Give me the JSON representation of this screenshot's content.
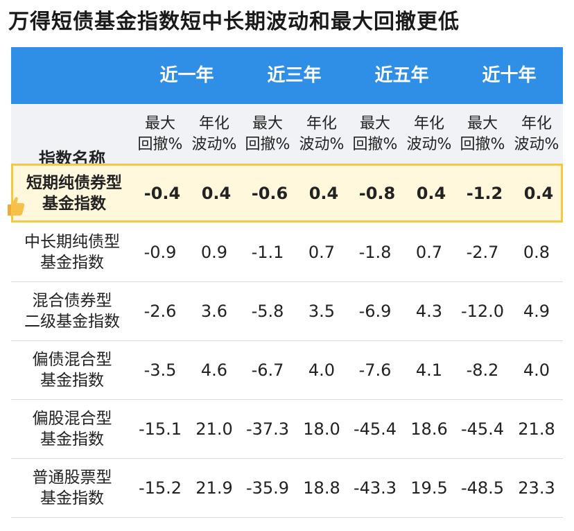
{
  "title": "万得短债基金指数短中长期波动和最大回撤更低",
  "table": {
    "name_header": "指数名称",
    "periods": [
      "近一年",
      "近三年",
      "近五年",
      "近十年"
    ],
    "sub_headers": [
      {
        "line1": "最大",
        "line2": "回撤%"
      },
      {
        "line1": "年化",
        "line2": "波动%"
      },
      {
        "line1": "最大",
        "line2": "回撤%"
      },
      {
        "line1": "年化",
        "line2": "波动%"
      },
      {
        "line1": "最大",
        "line2": "回撤%"
      },
      {
        "line1": "年化",
        "line2": "波动%"
      },
      {
        "line1": "最大",
        "line2": "回撤%"
      },
      {
        "line1": "年化",
        "line2": "波动%"
      }
    ],
    "rows": [
      {
        "name1": "短期纯债券型",
        "name2": "基金指数",
        "values": [
          "-0.4",
          "0.4",
          "-0.6",
          "0.4",
          "-0.8",
          "0.4",
          "-1.2",
          "0.4"
        ]
      },
      {
        "name1": "中长期纯债型",
        "name2": "基金指数",
        "values": [
          "-0.9",
          "0.9",
          "-1.1",
          "0.7",
          "-1.8",
          "0.7",
          "-2.7",
          "0.8"
        ]
      },
      {
        "name1": "混合债券型",
        "name2": "二级基金指数",
        "values": [
          "-2.6",
          "3.6",
          "-5.8",
          "3.5",
          "-6.9",
          "4.3",
          "-12.0",
          "4.9"
        ]
      },
      {
        "name1": "偏债混合型",
        "name2": "基金指数",
        "values": [
          "-3.5",
          "4.6",
          "-6.7",
          "4.0",
          "-7.6",
          "4.1",
          "-8.2",
          "4.0"
        ]
      },
      {
        "name1": "偏股混合型",
        "name2": "基金指数",
        "values": [
          "-15.1",
          "21.0",
          "-37.3",
          "18.0",
          "-45.4",
          "18.6",
          "-45.4",
          "21.8"
        ]
      },
      {
        "name1": "普通股票型",
        "name2": "基金指数",
        "values": [
          "-15.2",
          "21.9",
          "-35.9",
          "18.8",
          "-43.3",
          "19.5",
          "-48.5",
          "23.3"
        ]
      }
    ]
  },
  "colors": {
    "header_blue": "#2f8fe6",
    "highlight_border": "#f5c842",
    "highlight_fill": "#fff8dc"
  },
  "icons": {
    "highlight_marker": "thumbs-up-icon"
  }
}
